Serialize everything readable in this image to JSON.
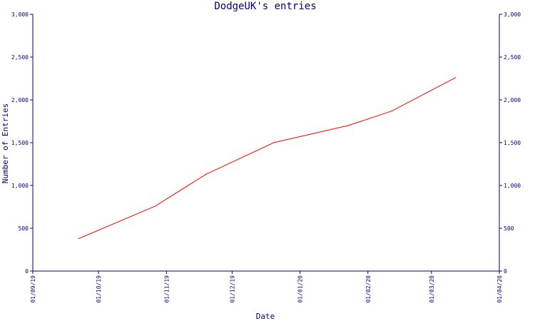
{
  "chart_data": {
    "type": "line",
    "title": "DodgeUK's entries",
    "xlabel": "Date",
    "ylabel": "Number of Entries",
    "x_ticks": [
      "01/09/19",
      "01/10/19",
      "01/11/19",
      "01/12/19",
      "01/01/20",
      "01/02/20",
      "01/03/20",
      "01/04/20"
    ],
    "y_ticks": [
      "0",
      "500",
      "1,000",
      "1,500",
      "2,000",
      "2,500",
      "3,000"
    ],
    "ylim": [
      0,
      3000
    ],
    "xlim": [
      "2019-09-01",
      "2020-04-01"
    ],
    "grid": false,
    "right_axis": true,
    "series": [
      {
        "color": "#ff0000",
        "points": [
          {
            "x": "2019-09-22",
            "y": 380
          },
          {
            "x": "2019-10-27",
            "y": 760
          },
          {
            "x": "2019-11-19",
            "y": 1130
          },
          {
            "x": "2019-12-20",
            "y": 1500
          },
          {
            "x": "2020-01-23",
            "y": 1700
          },
          {
            "x": "2020-02-12",
            "y": 1870
          },
          {
            "x": "2020-03-12",
            "y": 2260
          }
        ]
      }
    ]
  }
}
